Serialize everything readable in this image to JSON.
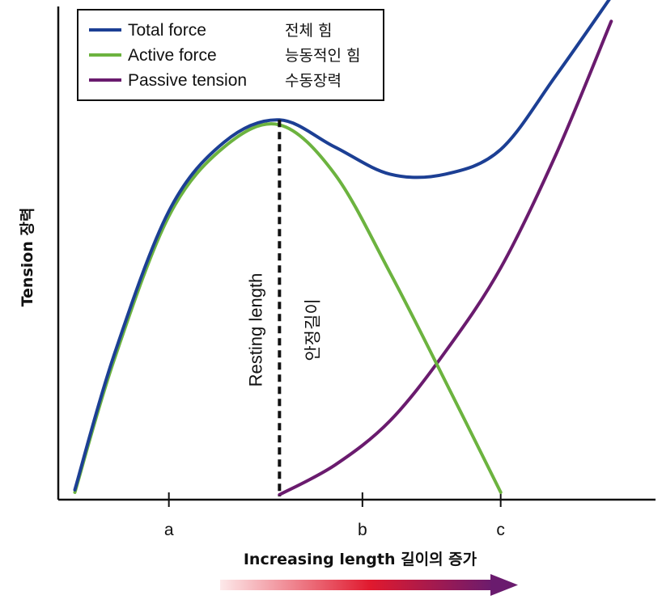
{
  "chart_data": {
    "type": "line",
    "ylabel": "Tension 장력",
    "xlabel": "Increasing length 길이의 증가",
    "x_ticks": [
      {
        "label": "a",
        "x": 2.0
      },
      {
        "label": "b",
        "x": 5.5
      },
      {
        "label": "c",
        "x": 8.0
      }
    ],
    "xlim": [
      0,
      10.8
    ],
    "ylim": [
      0,
      10
    ],
    "resting_length": {
      "x": 4.0,
      "label_en": "Resting length",
      "label_ko": "안정길이"
    },
    "legend": {
      "placement": "top-left",
      "entries": [
        {
          "name_en": "Total force",
          "name_ko": "전체 힘",
          "color": "#1c3f94"
        },
        {
          "name_en": "Active force",
          "name_ko": "능동적인 힘",
          "color": "#6cb33f"
        },
        {
          "name_en": "Passive tension",
          "name_ko": "수동장력",
          "color": "#6a1b6e"
        }
      ]
    },
    "series": [
      {
        "name": "Total force",
        "color": "#1c3f94",
        "points": [
          [
            0.3,
            0.2
          ],
          [
            1,
            2.9
          ],
          [
            2,
            5.85
          ],
          [
            3,
            7.25
          ],
          [
            4,
            7.7
          ],
          [
            5,
            7.15
          ],
          [
            6,
            6.6
          ],
          [
            7,
            6.6
          ],
          [
            8,
            7.1
          ],
          [
            9,
            8.6
          ],
          [
            10,
            10.2
          ]
        ]
      },
      {
        "name": "Active force",
        "color": "#6cb33f",
        "points": [
          [
            0.3,
            0.15
          ],
          [
            1,
            2.8
          ],
          [
            2,
            5.75
          ],
          [
            3,
            7.15
          ],
          [
            4,
            7.6
          ],
          [
            5,
            6.6
          ],
          [
            6,
            4.6
          ],
          [
            7,
            2.4
          ],
          [
            8,
            0.15
          ]
        ]
      },
      {
        "name": "Passive tension",
        "color": "#6a1b6e",
        "points": [
          [
            4,
            0.1
          ],
          [
            5,
            0.7
          ],
          [
            6,
            1.6
          ],
          [
            7,
            3.0
          ],
          [
            8,
            4.7
          ],
          [
            9,
            7.0
          ],
          [
            10,
            9.7
          ]
        ]
      }
    ],
    "arrow_colors": [
      "#fde9ea",
      "#e0192e",
      "#6a1b6e"
    ]
  }
}
